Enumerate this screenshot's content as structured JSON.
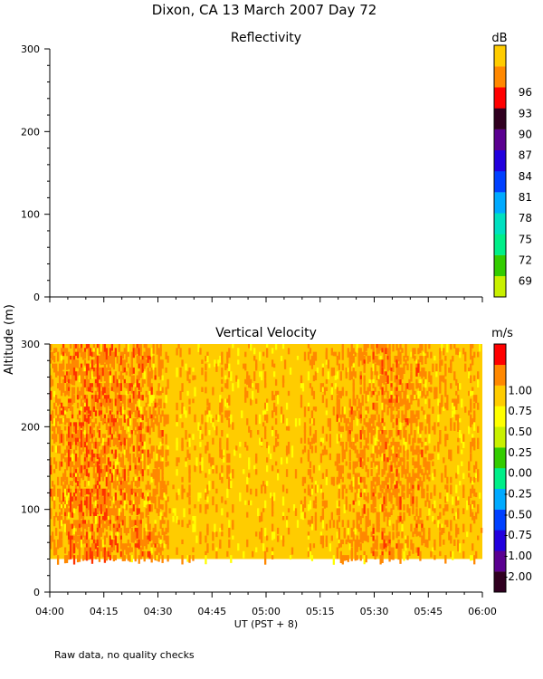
{
  "figure": {
    "title": "Dixon, CA 13 March 2007  Day  72",
    "shared_ylabel": "Altitude (m)",
    "xlabel": "UT  (PST + 8)",
    "footnote": "Raw data, no quality checks"
  },
  "chart_data": [
    {
      "type": "heatmap",
      "title": "Reflectivity",
      "ylim": [
        0,
        300
      ],
      "yticks": [
        0,
        100,
        200,
        300
      ],
      "xticks": [
        "04:00",
        "04:15",
        "04:30",
        "04:45",
        "05:00",
        "05:15",
        "05:30",
        "05:45",
        "06:00"
      ],
      "data": "none",
      "colorbar": {
        "unit": "dB",
        "ticks": [
          "69",
          "72",
          "75",
          "78",
          "81",
          "84",
          "87",
          "90",
          "93",
          "96"
        ],
        "colors": [
          "#c8f000",
          "#33cc00",
          "#00ee88",
          "#00e0c0",
          "#00aaff",
          "#0040ff",
          "#2200dd",
          "#5a0090",
          "#300020",
          "#ff0000",
          "#ff8800",
          "#ffcc00"
        ]
      }
    },
    {
      "type": "heatmap",
      "title": "Vertical Velocity",
      "ylim": [
        0,
        300
      ],
      "yticks": [
        0,
        100,
        200,
        300
      ],
      "xticks": [
        "04:00",
        "04:15",
        "04:30",
        "04:45",
        "05:00",
        "05:15",
        "05:30",
        "05:45",
        "06:00"
      ],
      "xlim": [
        "04:00",
        "06:00"
      ],
      "data_altitude_range": [
        40,
        300
      ],
      "dominant_value": 0.6,
      "value_range": [
        0.3,
        1.1
      ],
      "colorbar": {
        "unit": "m/s",
        "ticks": [
          "-2.00",
          "-1.00",
          "-0.75",
          "-0.50",
          "-0.25",
          "0.00",
          "0.25",
          "0.50",
          "0.75",
          "1.00"
        ],
        "colors": [
          "#300020",
          "#5a0090",
          "#2200dd",
          "#0040ff",
          "#00aaff",
          "#00ee88",
          "#33cc00",
          "#c8f000",
          "#ffff00",
          "#ffcc00",
          "#ff8800",
          "#ff0000"
        ]
      }
    }
  ]
}
